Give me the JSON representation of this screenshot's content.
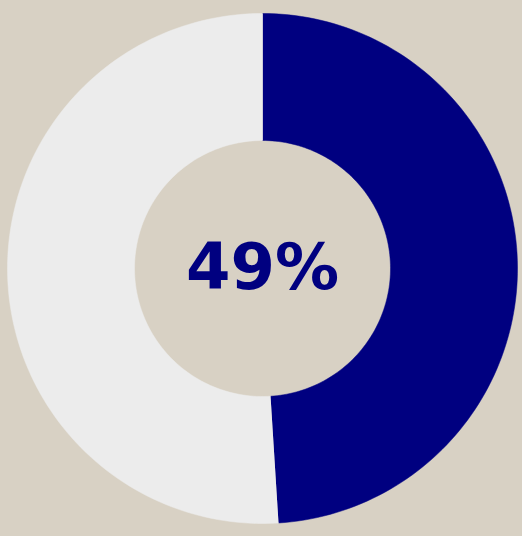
{
  "chart_data": {
    "type": "donut",
    "values": [
      49,
      51
    ],
    "colors": [
      "#000080",
      "#ececec"
    ],
    "annotations": [
      "49%"
    ]
  }
}
